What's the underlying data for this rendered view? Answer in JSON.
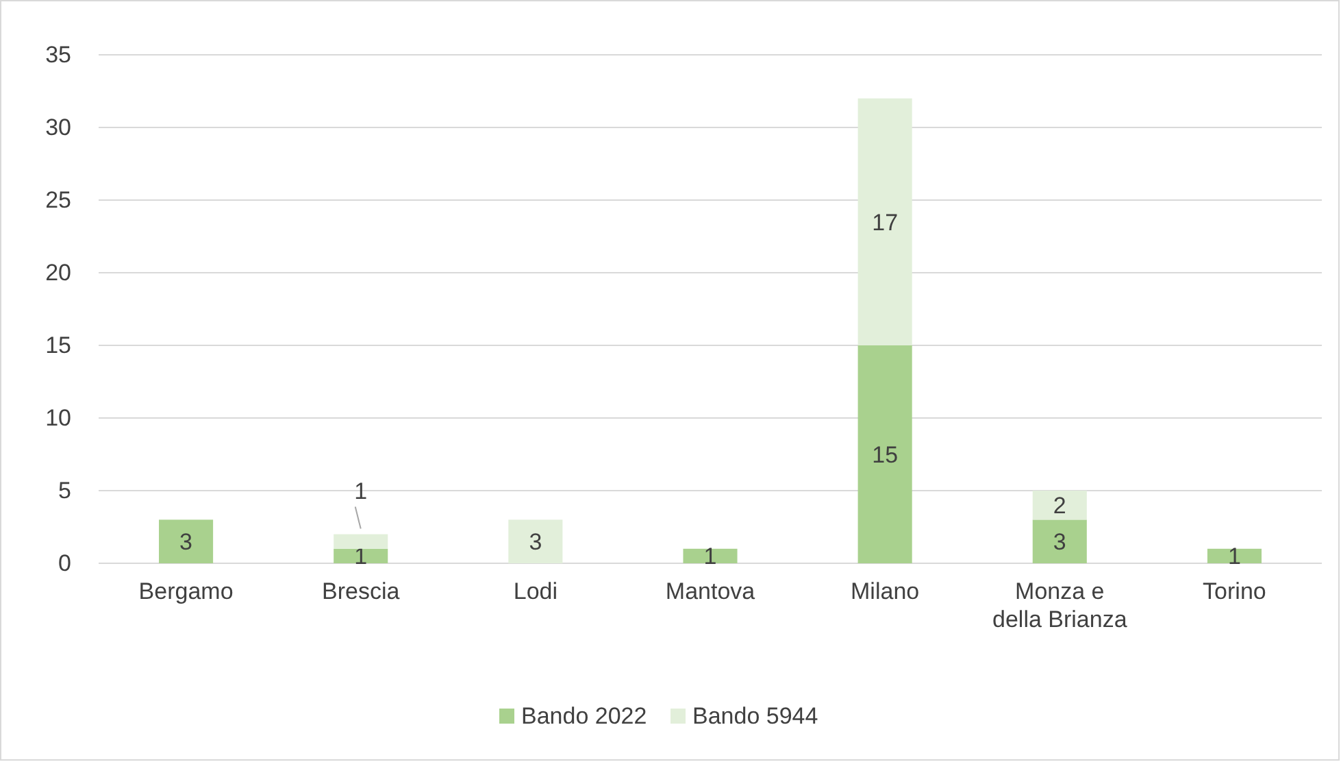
{
  "chart_data": {
    "type": "bar",
    "stacked": true,
    "categories": [
      "Bergamo",
      "Brescia",
      "Lodi",
      "Mantova",
      "Milano",
      "Monza e della Brianza",
      "Torino"
    ],
    "series": [
      {
        "name": "Bando 2022",
        "color": "#a9d18e",
        "values": [
          3,
          1,
          null,
          1,
          15,
          3,
          1
        ]
      },
      {
        "name": "Bando 5944",
        "color": "#e2efda",
        "values": [
          null,
          1,
          3,
          null,
          17,
          2,
          null
        ]
      }
    ],
    "ylim": [
      0,
      35
    ],
    "yticks": [
      0,
      5,
      10,
      15,
      20,
      25,
      30,
      35
    ],
    "grid": "y",
    "legend": "bottom",
    "data_labels": true
  }
}
